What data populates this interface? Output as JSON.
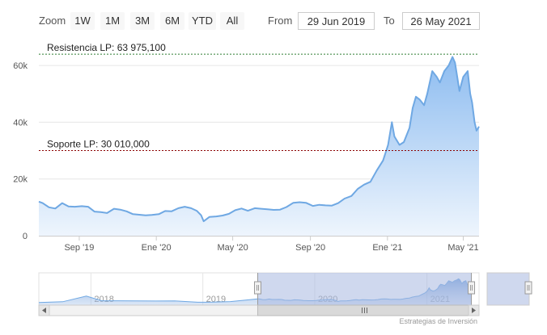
{
  "toolbar": {
    "zoom_label": "Zoom",
    "zoom_buttons": [
      "1W",
      "1M",
      "3M",
      "6M",
      "YTD",
      "All"
    ],
    "from_label": "From",
    "from_value": "29 Jun 2019",
    "to_label": "To",
    "to_value": "26 May 2021"
  },
  "credit": "Estrategias de Inversión",
  "colors": {
    "line": "#6fa8e3",
    "area_top": "#8dbcf0",
    "area_bottom": "#eef5fd",
    "resistance": "#2e7d32",
    "support": "#8b0000",
    "grid": "#e6e6e6",
    "navigator_mask": "#a8b8e0"
  },
  "chart_data": {
    "type": "area",
    "title": "",
    "xlabel": "",
    "ylabel": "",
    "ylim": [
      0,
      66000
    ],
    "yticks": [
      0,
      20000,
      40000,
      60000
    ],
    "ytick_labels": [
      "0",
      "20k",
      "40k",
      "60k"
    ],
    "xticks": [
      "Sep '19",
      "Ene '20",
      "May '20",
      "Sep '20",
      "Ene '21",
      "May '21"
    ],
    "xtick_dates": [
      "2019-09-01",
      "2020-01-01",
      "2020-05-01",
      "2020-09-01",
      "2021-01-01",
      "2021-05-01"
    ],
    "xlim": [
      "2019-06-29",
      "2021-05-26"
    ],
    "series": [
      {
        "x": [
          "2019-06-29",
          "2019-07-05",
          "2019-07-15",
          "2019-07-25",
          "2019-08-05",
          "2019-08-15",
          "2019-08-25",
          "2019-09-05",
          "2019-09-15",
          "2019-09-25",
          "2019-10-05",
          "2019-10-15",
          "2019-10-26",
          "2019-11-05",
          "2019-11-15",
          "2019-11-25",
          "2019-12-05",
          "2019-12-15",
          "2019-12-25",
          "2020-01-05",
          "2020-01-15",
          "2020-01-25",
          "2020-02-05",
          "2020-02-15",
          "2020-02-25",
          "2020-03-05",
          "2020-03-12",
          "2020-03-16",
          "2020-03-25",
          "2020-04-05",
          "2020-04-15",
          "2020-04-25",
          "2020-05-05",
          "2020-05-15",
          "2020-05-25",
          "2020-06-05",
          "2020-06-15",
          "2020-06-25",
          "2020-07-05",
          "2020-07-15",
          "2020-07-25",
          "2020-08-05",
          "2020-08-15",
          "2020-08-25",
          "2020-09-05",
          "2020-09-15",
          "2020-09-25",
          "2020-10-05",
          "2020-10-15",
          "2020-10-25",
          "2020-11-05",
          "2020-11-15",
          "2020-11-25",
          "2020-12-05",
          "2020-12-15",
          "2020-12-25",
          "2021-01-02",
          "2021-01-08",
          "2021-01-12",
          "2021-01-20",
          "2021-01-27",
          "2021-02-05",
          "2021-02-10",
          "2021-02-15",
          "2021-02-21",
          "2021-02-28",
          "2021-03-05",
          "2021-03-13",
          "2021-03-20",
          "2021-03-25",
          "2021-04-01",
          "2021-04-08",
          "2021-04-14",
          "2021-04-18",
          "2021-04-25",
          "2021-05-01",
          "2021-05-08",
          "2021-05-12",
          "2021-05-15",
          "2021-05-19",
          "2021-05-22",
          "2021-05-26"
        ],
        "y": [
          12000,
          11500,
          10000,
          9600,
          11500,
          10300,
          10200,
          10400,
          10200,
          8500,
          8300,
          8000,
          9500,
          9200,
          8600,
          7600,
          7400,
          7200,
          7300,
          7600,
          8700,
          8600,
          9700,
          10200,
          9700,
          8800,
          7200,
          5100,
          6600,
          6800,
          7100,
          7700,
          9000,
          9600,
          8800,
          9700,
          9500,
          9300,
          9100,
          9200,
          10100,
          11600,
          11800,
          11600,
          10500,
          10900,
          10700,
          10600,
          11500,
          13100,
          14000,
          16500,
          18000,
          19000,
          23000,
          26500,
          32000,
          40000,
          35000,
          32000,
          33000,
          38000,
          45000,
          49000,
          48000,
          46000,
          50000,
          58000,
          56000,
          54000,
          58000,
          60000,
          63000,
          61000,
          51000,
          56000,
          58000,
          50000,
          47000,
          40000,
          37000,
          38500
        ]
      }
    ],
    "annotations": [
      {
        "label": "Resistencia LP: 63 975,100",
        "value": 63975.1
      },
      {
        "label": "Soporte LP: 30 010,000",
        "value": 30010
      }
    ],
    "navigator": {
      "year_labels": [
        "2018",
        "2019",
        "2020",
        "2021"
      ],
      "year_dates": [
        "2018-01-01",
        "2019-01-01",
        "2020-01-01",
        "2021-01-01"
      ],
      "xlim": [
        "2017-07-15",
        "2021-06-20"
      ],
      "selected": [
        "2019-06-29",
        "2021-05-26"
      ],
      "history": {
        "x": [
          "2017-07-15",
          "2017-10-01",
          "2017-12-17",
          "2018-02-06",
          "2018-04-01",
          "2018-06-01",
          "2018-08-01",
          "2018-10-01",
          "2018-12-15",
          "2019-02-01",
          "2019-04-01"
        ],
        "y": [
          2500,
          4500,
          19000,
          7000,
          7000,
          6500,
          6300,
          6500,
          3200,
          3500,
          5000
        ]
      }
    }
  }
}
